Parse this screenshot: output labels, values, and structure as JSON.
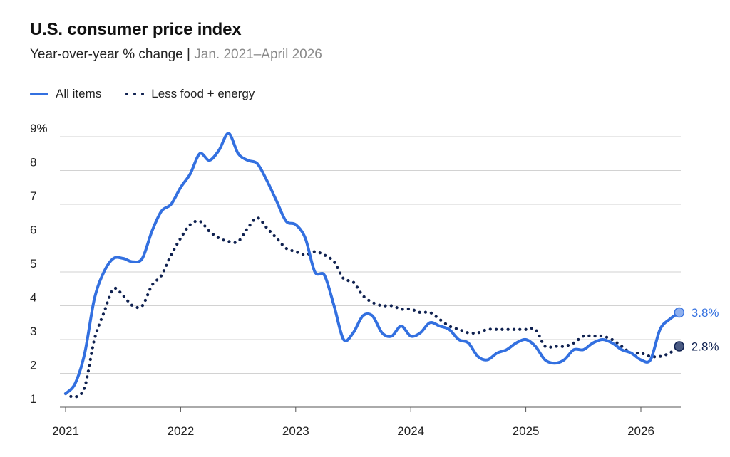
{
  "chart_data": {
    "type": "line",
    "title": "U.S. consumer price index",
    "subtitle_prefix": "Year-over-year % change",
    "subtitle_separator": "|",
    "subtitle_range": "Jan. 2021–April 2026",
    "y_ticks": [
      "9%",
      "8",
      "7",
      "6",
      "5",
      "4",
      "3",
      "2",
      "1"
    ],
    "ylim": [
      1,
      9
    ],
    "x_ticks": [
      "2021",
      "2022",
      "2023",
      "2024",
      "2025",
      "2026"
    ],
    "grid": true,
    "legend_position": "top-left",
    "series": [
      {
        "name": "All items",
        "style": "solid",
        "color": "#3370e0",
        "end_label": "3.8%",
        "values": [
          1.4,
          1.7,
          2.6,
          4.2,
          5.0,
          5.4,
          5.4,
          5.3,
          5.4,
          6.2,
          6.8,
          7.0,
          7.5,
          7.9,
          8.5,
          8.3,
          8.6,
          9.1,
          8.5,
          8.3,
          8.2,
          7.7,
          7.1,
          6.5,
          6.4,
          6.0,
          5.0,
          4.9,
          4.0,
          3.0,
          3.2,
          3.7,
          3.7,
          3.2,
          3.1,
          3.4,
          3.1,
          3.2,
          3.5,
          3.4,
          3.3,
          3.0,
          2.9,
          2.5,
          2.4,
          2.6,
          2.7,
          2.9,
          3.0,
          2.8,
          2.4,
          2.3,
          2.4,
          2.7,
          2.7,
          2.9,
          3.0,
          2.9,
          2.7,
          2.6,
          2.4,
          2.4,
          3.3,
          3.6,
          3.8
        ]
      },
      {
        "name": "Less food + energy",
        "style": "dotted",
        "color": "#0f2150",
        "end_label": "2.8%",
        "values": [
          1.4,
          1.3,
          1.6,
          3.0,
          3.8,
          4.5,
          4.3,
          4.0,
          4.0,
          4.6,
          4.9,
          5.5,
          6.0,
          6.4,
          6.5,
          6.2,
          6.0,
          5.9,
          5.9,
          6.3,
          6.6,
          6.3,
          6.0,
          5.7,
          5.6,
          5.5,
          5.6,
          5.5,
          5.3,
          4.8,
          4.7,
          4.3,
          4.1,
          4.0,
          4.0,
          3.9,
          3.9,
          3.8,
          3.8,
          3.6,
          3.4,
          3.3,
          3.2,
          3.2,
          3.3,
          3.3,
          3.3,
          3.3,
          3.3,
          3.3,
          2.8,
          2.8,
          2.8,
          2.9,
          3.1,
          3.1,
          3.1,
          3.0,
          2.8,
          2.6,
          2.6,
          2.5,
          2.5,
          2.6,
          2.8
        ]
      }
    ]
  }
}
